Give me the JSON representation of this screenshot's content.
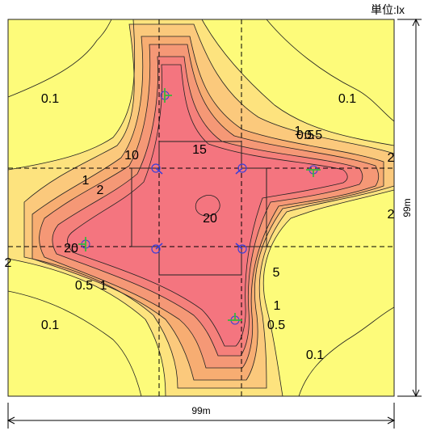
{
  "unit_label": "単位:lx",
  "dimension_width": "99m",
  "dimension_height": "99m",
  "colors": {
    "background": "#ffffff",
    "level_0": "#fdfb7a",
    "level_0_1": "#fde37e",
    "level_0_5": "#fbc97c",
    "level_1": "#f7ad72",
    "level_2": "#f59876",
    "level_5": "#f5807b",
    "level_10": "#f4757f",
    "contour_line": "#222222",
    "dashed_line": "#000000",
    "luminaire": "#3b3fd9",
    "aim_blue": "#3b3fd9",
    "aim_green": "#3cb43c"
  },
  "contour_levels": [
    "0.1",
    "0.5",
    "1",
    "2",
    "5",
    "10",
    "15",
    "20"
  ],
  "contour_labels": [
    {
      "text": "0.1"
    },
    {
      "text": "0.1"
    },
    {
      "text": "0.5"
    },
    {
      "text": "1"
    },
    {
      "text": "0.5"
    },
    {
      "text": "10"
    },
    {
      "text": "15"
    },
    {
      "text": "2"
    },
    {
      "text": "1"
    },
    {
      "text": "2"
    },
    {
      "text": "2"
    },
    {
      "text": "20"
    },
    {
      "text": "20"
    },
    {
      "text": "2"
    },
    {
      "text": "5"
    },
    {
      "text": "0.5"
    },
    {
      "text": "1"
    },
    {
      "text": "1"
    },
    {
      "text": "0.1"
    },
    {
      "text": "0.5"
    },
    {
      "text": "0.1"
    }
  ],
  "luminaires_blue": [
    "luminaire",
    "luminaire",
    "luminaire",
    "luminaire"
  ],
  "luminaires_green": [
    "luminaire",
    "luminaire",
    "luminaire",
    "luminaire"
  ]
}
